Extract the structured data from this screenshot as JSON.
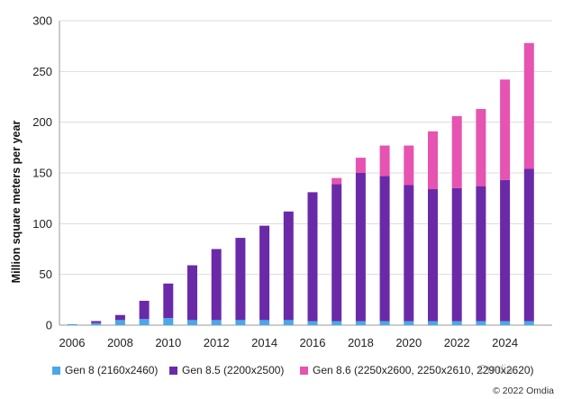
{
  "chart_data": {
    "type": "bar",
    "stacked": true,
    "title": "",
    "xlabel": "",
    "ylabel": "Million square meters per year",
    "ylim": [
      0,
      300
    ],
    "yticks": [
      0,
      50,
      100,
      150,
      200,
      250,
      300
    ],
    "categories": [
      2006,
      2007,
      2008,
      2009,
      2010,
      2011,
      2012,
      2013,
      2014,
      2015,
      2016,
      2017,
      2018,
      2019,
      2020,
      2021,
      2022,
      2023,
      2024,
      2025
    ],
    "xtick_labels": [
      "2006",
      "2008",
      "2010",
      "2012",
      "2014",
      "2016",
      "2018",
      "2020",
      "2022",
      "2024"
    ],
    "series": [
      {
        "name": "Gen 8 (2160x2460)",
        "color": "#4aa8e8",
        "values": [
          1,
          2,
          5,
          6,
          7,
          5,
          5,
          5,
          5,
          5,
          4,
          4,
          4,
          4,
          4,
          4,
          4,
          4,
          4,
          4
        ]
      },
      {
        "name": "Gen 8.5 (2200x2500)",
        "color": "#6a2aa8",
        "values": [
          0,
          2,
          5,
          18,
          34,
          54,
          70,
          81,
          93,
          107,
          127,
          135,
          146,
          143,
          134,
          130,
          131,
          133,
          139,
          150
        ]
      },
      {
        "name": "Gen 8.6 (2250x2600, 2250x2610, 2290x2620)",
        "color": "#e653b0",
        "values": [
          0,
          0,
          0,
          0,
          0,
          0,
          0,
          0,
          0,
          0,
          0,
          6,
          15,
          30,
          39,
          57,
          71,
          76,
          99,
          124
        ]
      }
    ]
  },
  "copyright": "© 2022 Omdia",
  "watermark": "Omdia"
}
